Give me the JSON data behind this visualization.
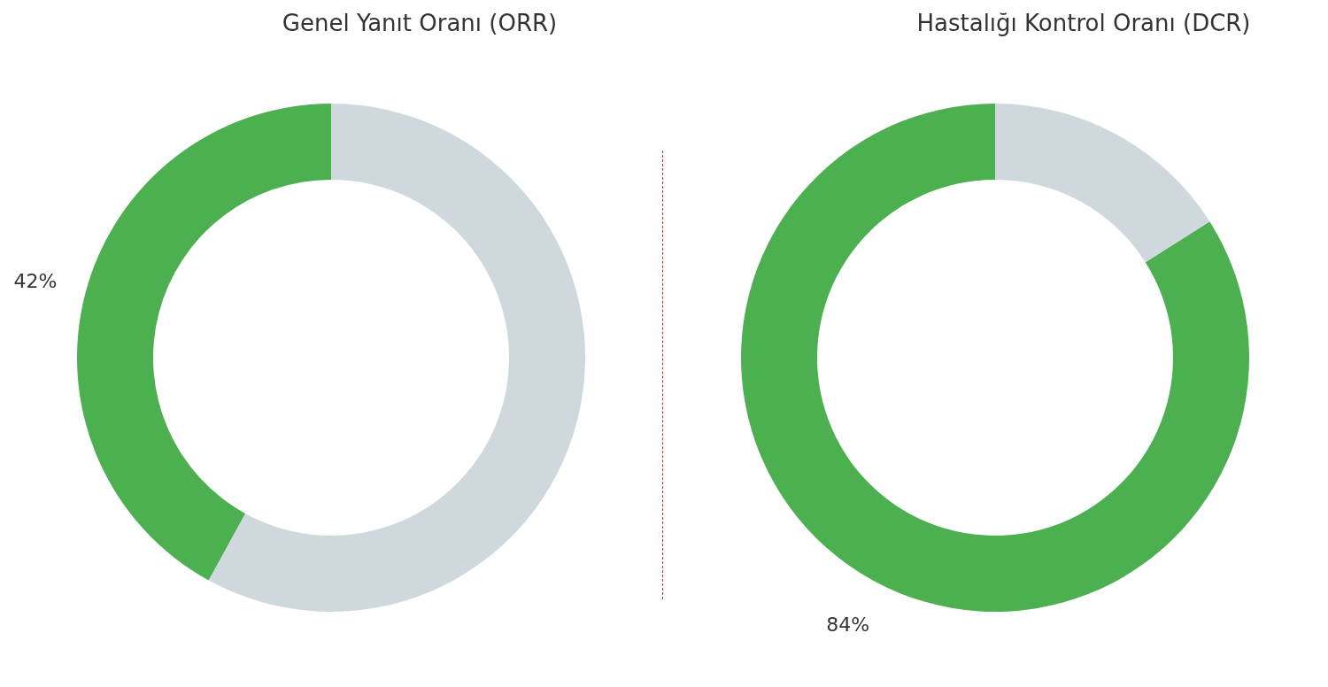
{
  "chart_data": [
    {
      "type": "donut",
      "title": "Genel Yanıt Oranı (ORR)",
      "categories": [
        null,
        null
      ],
      "values": [
        42,
        58
      ],
      "colors": [
        "#4caf50",
        "#cfd8dc"
      ],
      "value_labels": [
        "42%",
        null
      ],
      "legend": false
    },
    {
      "type": "donut",
      "title": "Hastalığı Kontrol Oranı (DCR)",
      "categories": [
        null,
        null
      ],
      "values": [
        84,
        16
      ],
      "colors": [
        "#4caf50",
        "#cfd8dc"
      ],
      "value_labels": [
        "84%",
        null
      ],
      "legend": false
    }
  ]
}
